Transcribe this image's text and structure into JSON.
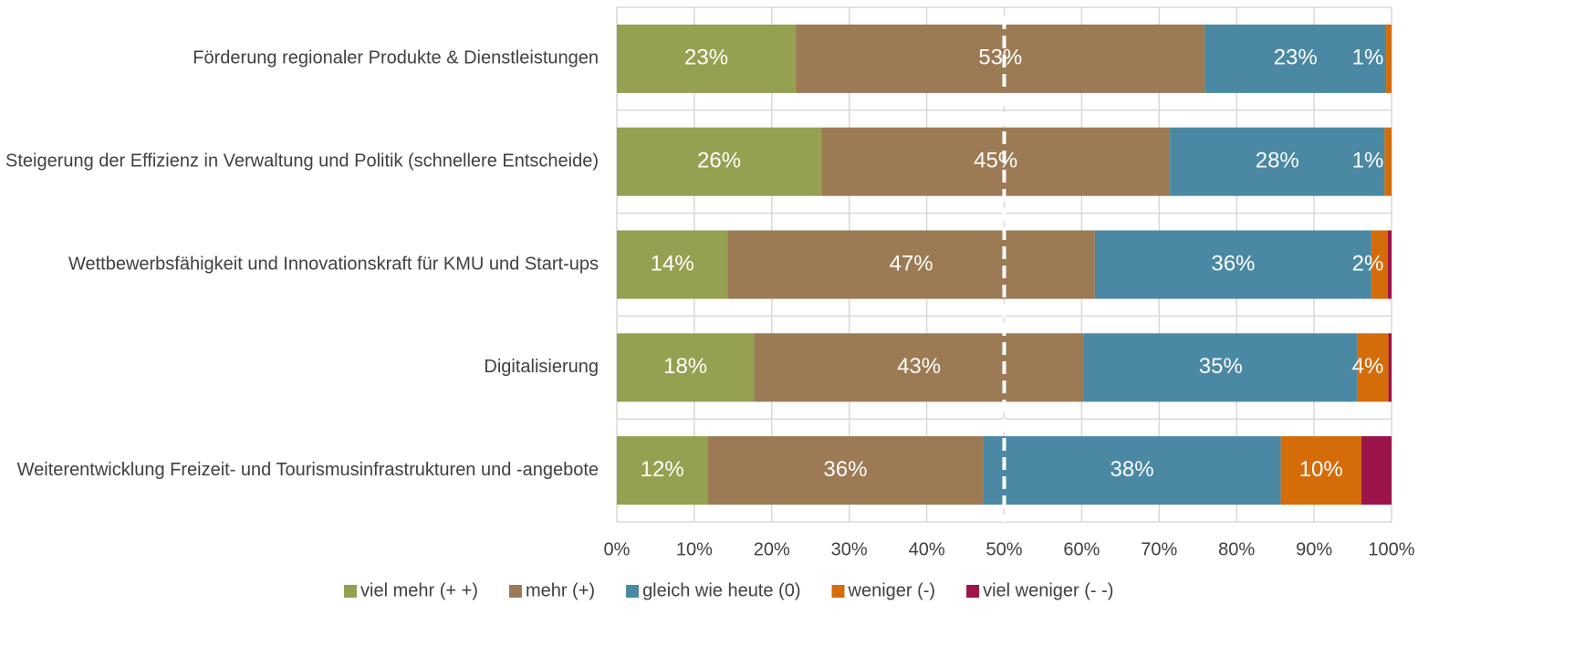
{
  "chart_data": {
    "type": "stacked-bar-horizontal",
    "categories": [
      "Förderung regionaler Produkte & Dienstleistungen",
      "Steigerung der Effizienz in Verwaltung und Politik (schnellere Entscheide)",
      "Wettbewerbsfähigkeit und Innovationskraft für KMU und Start-ups",
      "Digitalisierung",
      "Weiterentwicklung Freizeit- und Tourismusinfrastrukturen und -angebote"
    ],
    "series": [
      {
        "name": "viel mehr (+ +)",
        "color": "#95a050",
        "values": [
          23.1,
          26.4,
          14.3,
          17.7,
          11.7
        ],
        "value_labels": [
          "23%",
          "26%",
          "14%",
          "18%",
          "12%"
        ]
      },
      {
        "name": "mehr (+)",
        "color": "#9c7a54",
        "values": [
          52.8,
          45.0,
          47.4,
          42.6,
          35.6
        ],
        "value_labels": [
          "53%",
          "45%",
          "47%",
          "43%",
          "36%"
        ]
      },
      {
        "name": "gleich wie heute (0)",
        "color": "#4a88a3",
        "values": [
          23.4,
          27.7,
          35.7,
          35.3,
          38.4
        ],
        "value_labels": [
          "23%",
          "28%",
          "36%",
          "35%",
          "38%"
        ]
      },
      {
        "name": "weniger (-)",
        "color": "#d46c0a",
        "values": [
          0.7,
          0.9,
          2.1,
          4.0,
          10.4
        ],
        "value_labels": [
          "1%",
          "1%",
          "2%",
          "4%",
          "10%"
        ]
      },
      {
        "name": "viel weniger (- -)",
        "color": "#9c1449",
        "values": [
          0,
          0,
          0.5,
          0.4,
          3.9
        ]
      }
    ],
    "xlim": [
      0,
      100
    ],
    "xticks": [
      {
        "value": 0,
        "label": "0%"
      },
      {
        "value": 10,
        "label": "10%"
      },
      {
        "value": 20,
        "label": "20%"
      },
      {
        "value": 30,
        "label": "30%"
      },
      {
        "value": 40,
        "label": "40%"
      },
      {
        "value": 50,
        "label": "50%"
      },
      {
        "value": 60,
        "label": "60%"
      },
      {
        "value": 70,
        "label": "70%"
      },
      {
        "value": 80,
        "label": "80%"
      },
      {
        "value": 90,
        "label": "90%"
      },
      {
        "value": 100,
        "label": "100%"
      }
    ],
    "reference_line": 50,
    "grid": true,
    "legend": "bottom"
  }
}
